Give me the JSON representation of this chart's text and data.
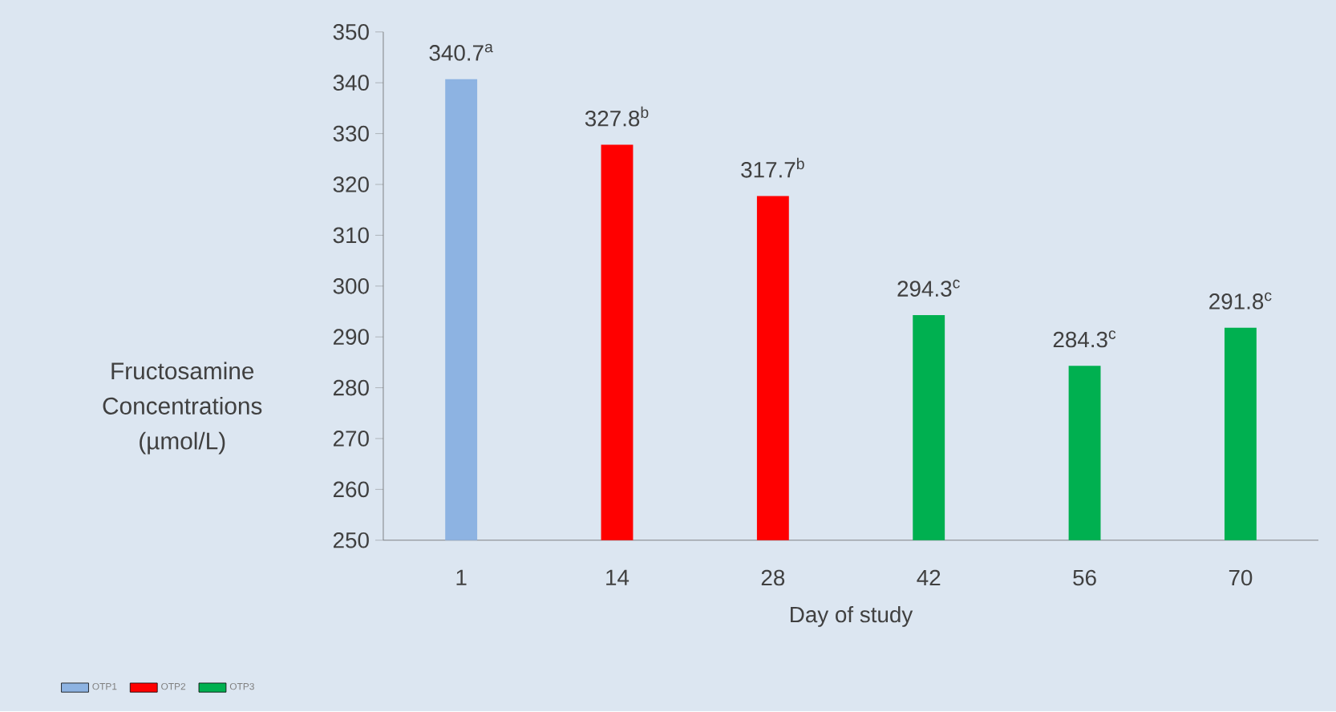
{
  "chart_data": {
    "type": "bar",
    "xlabel": "Day of study",
    "ylabel": "Fructosamine Concentrations (µmol/L)",
    "categories": [
      "1",
      "14",
      "28",
      "42",
      "56",
      "70"
    ],
    "series": [
      {
        "name": "OTP1",
        "color": "#8db3e2",
        "values": [
          340.7,
          null,
          null,
          null,
          null,
          null
        ],
        "value_labels": [
          "340.7$^{a}$",
          null,
          null,
          null,
          null,
          null
        ]
      },
      {
        "name": "OTP2",
        "color": "#ff0000",
        "values": [
          null,
          327.8,
          317.7,
          null,
          null,
          null
        ],
        "value_labels": [
          null,
          "327.8$^{b}$",
          "317.7$^{b}$",
          null,
          null,
          null
        ]
      },
      {
        "name": "OTP3",
        "color": "#00b050",
        "values": [
          null,
          null,
          null,
          294.3,
          284.3,
          291.8
        ],
        "value_labels": [
          null,
          null,
          null,
          "294.3$^{c}$",
          "284.3$^{c}$",
          "291.8$^{c}$"
        ]
      }
    ],
    "ylim": [
      250,
      350
    ],
    "yticks": [
      250,
      260,
      270,
      280,
      290,
      300,
      310,
      320,
      330,
      340,
      350
    ],
    "legend": "bottom"
  }
}
